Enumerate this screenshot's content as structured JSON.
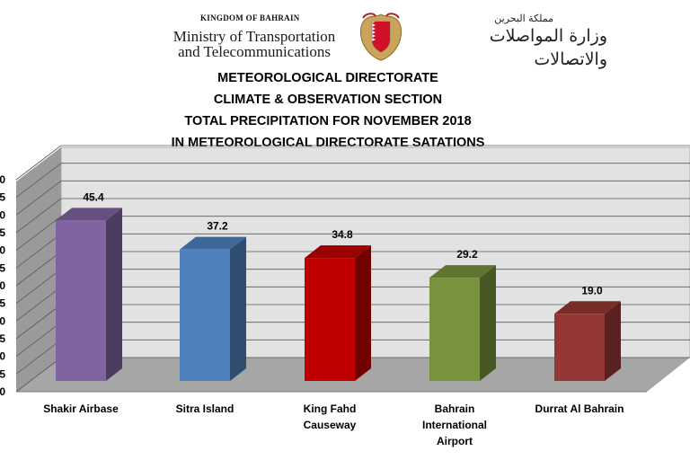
{
  "header": {
    "kingdom": "KINGDOM OF BAHRAIN",
    "ministry_line1": "Ministry of Transportation",
    "ministry_line2": "and Telecommunications",
    "arabic_small": "مملكة البحرين",
    "arabic_big": "وزارة المواصلات والاتصالات",
    "crest_icon": "bahrain-emblem-icon"
  },
  "titles": [
    "METEOROLOGICAL DIRECTORATE",
    "CLIMATE & OBSERVATION SECTION",
    "TOTAL PRECIPITATION FOR NOVEMBER 2018",
    "IN METEOROLOGICAL DIRECTORATE SATATIONS"
  ],
  "chart_data": {
    "type": "bar",
    "style": "3d-column",
    "categories": [
      [
        "Shakir Airbase"
      ],
      [
        "Sitra Island"
      ],
      [
        "King Fahd",
        "Causeway"
      ],
      [
        "Bahrain",
        "International",
        "Airport"
      ],
      [
        "Durrat Al Bahrain"
      ]
    ],
    "values": [
      45.4,
      37.2,
      34.8,
      29.2,
      19.0
    ],
    "value_labels": [
      "45.4",
      "37.2",
      "34.8",
      "29.2",
      "19.0"
    ],
    "colors": [
      "#8064a2",
      "#4f81bd",
      "#c00000",
      "#77933c",
      "#953735"
    ],
    "ylim": [
      0,
      60
    ],
    "ytick_step": 5,
    "grid": true
  }
}
